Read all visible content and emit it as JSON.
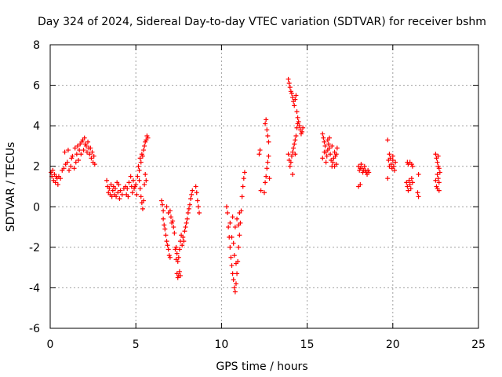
{
  "chart_data": {
    "type": "scatter",
    "title": "Day 324 of 2024, Sidereal Day-to-day VTEC variation (SDTVAR) for receiver bshm",
    "xlabel": "GPS time / hours",
    "ylabel": "SDTVAR / TECUs",
    "xlim": [
      0,
      25
    ],
    "ylim": [
      -6,
      8
    ],
    "xticks": [
      0,
      5,
      10,
      15,
      20,
      25
    ],
    "yticks": [
      -6,
      -4,
      -2,
      0,
      2,
      4,
      6,
      8
    ],
    "grid": true,
    "marker": "+",
    "color": "#ff0000",
    "series": [
      {
        "name": "SDTVAR",
        "points": [
          [
            0.05,
            1.7
          ],
          [
            0.1,
            1.5
          ],
          [
            0.15,
            1.8
          ],
          [
            0.2,
            1.3
          ],
          [
            0.25,
            1.6
          ],
          [
            0.3,
            1.2
          ],
          [
            0.35,
            1.5
          ],
          [
            0.4,
            1.4
          ],
          [
            0.45,
            1.1
          ],
          [
            0.5,
            1.5
          ],
          [
            0.6,
            1.4
          ],
          [
            0.7,
            1.8
          ],
          [
            0.8,
            1.9
          ],
          [
            0.85,
            2.7
          ],
          [
            0.9,
            2.1
          ],
          [
            1.0,
            2.2
          ],
          [
            1.05,
            2.8
          ],
          [
            1.1,
            1.8
          ],
          [
            1.2,
            2.0
          ],
          [
            1.25,
            2.4
          ],
          [
            1.3,
            2.5
          ],
          [
            1.4,
            1.9
          ],
          [
            1.45,
            2.9
          ],
          [
            1.5,
            2.2
          ],
          [
            1.55,
            2.6
          ],
          [
            1.6,
            3.0
          ],
          [
            1.65,
            2.3
          ],
          [
            1.7,
            2.8
          ],
          [
            1.75,
            3.1
          ],
          [
            1.8,
            2.6
          ],
          [
            1.85,
            3.2
          ],
          [
            1.9,
            3.3
          ],
          [
            1.95,
            2.8
          ],
          [
            2.0,
            3.4
          ],
          [
            2.05,
            3.1
          ],
          [
            2.1,
            3.0
          ],
          [
            2.15,
            2.7
          ],
          [
            2.2,
            3.2
          ],
          [
            2.25,
            2.9
          ],
          [
            2.3,
            2.6
          ],
          [
            2.35,
            2.9
          ],
          [
            2.4,
            2.4
          ],
          [
            2.45,
            2.7
          ],
          [
            2.5,
            2.2
          ],
          [
            2.55,
            2.5
          ],
          [
            2.6,
            2.1
          ],
          [
            3.3,
            1.3
          ],
          [
            3.35,
            1.0
          ],
          [
            3.4,
            0.7
          ],
          [
            3.45,
            0.9
          ],
          [
            3.5,
            0.6
          ],
          [
            3.55,
            1.1
          ],
          [
            3.6,
            0.5
          ],
          [
            3.65,
            0.8
          ],
          [
            3.7,
            1.0
          ],
          [
            3.75,
            0.6
          ],
          [
            3.8,
            0.9
          ],
          [
            3.85,
            0.5
          ],
          [
            3.9,
            1.2
          ],
          [
            3.95,
            0.7
          ],
          [
            4.0,
            1.1
          ],
          [
            4.05,
            0.4
          ],
          [
            4.1,
            0.8
          ],
          [
            4.2,
            0.6
          ],
          [
            4.3,
            0.9
          ],
          [
            4.4,
            1.0
          ],
          [
            4.45,
            0.6
          ],
          [
            4.5,
            0.9
          ],
          [
            4.55,
            0.5
          ],
          [
            4.6,
            1.2
          ],
          [
            4.7,
            1.5
          ],
          [
            4.75,
            1.0
          ],
          [
            4.8,
            0.7
          ],
          [
            4.85,
            1.3
          ],
          [
            4.9,
            0.9
          ],
          [
            4.95,
            1.0
          ],
          [
            5.0,
            1.1
          ],
          [
            5.05,
            0.6
          ],
          [
            5.1,
            1.5
          ],
          [
            5.15,
            2.0
          ],
          [
            5.2,
            1.8
          ],
          [
            5.25,
            2.4
          ],
          [
            5.3,
            2.2
          ],
          [
            5.35,
            2.6
          ],
          [
            5.4,
            2.5
          ],
          [
            5.45,
            2.8
          ],
          [
            5.5,
            3.0
          ],
          [
            5.55,
            3.2
          ],
          [
            5.6,
            3.3
          ],
          [
            5.65,
            3.5
          ],
          [
            5.7,
            3.4
          ],
          [
            5.2,
            1.3
          ],
          [
            5.25,
            0.9
          ],
          [
            5.3,
            0.5
          ],
          [
            5.35,
            0.2
          ],
          [
            5.4,
            -0.1
          ],
          [
            5.45,
            0.3
          ],
          [
            5.5,
            1.1
          ],
          [
            5.55,
            1.6
          ],
          [
            5.6,
            1.3
          ],
          [
            6.5,
            0.3
          ],
          [
            6.55,
            0.1
          ],
          [
            6.6,
            -0.2
          ],
          [
            6.6,
            -0.6
          ],
          [
            6.65,
            -0.9
          ],
          [
            6.7,
            -1.1
          ],
          [
            6.75,
            -1.4
          ],
          [
            6.8,
            -1.7
          ],
          [
            6.85,
            -1.9
          ],
          [
            6.9,
            -2.1
          ],
          [
            6.95,
            -2.4
          ],
          [
            7.0,
            -2.5
          ],
          [
            6.8,
            0.0
          ],
          [
            6.9,
            -0.3
          ],
          [
            7.0,
            -0.2
          ],
          [
            7.05,
            -0.5
          ],
          [
            7.1,
            -0.8
          ],
          [
            7.15,
            -0.7
          ],
          [
            7.2,
            -1.0
          ],
          [
            7.25,
            -1.3
          ],
          [
            7.3,
            -2.1
          ],
          [
            7.35,
            -2.6
          ],
          [
            7.4,
            -3.3
          ],
          [
            7.45,
            -3.5
          ],
          [
            7.5,
            -3.4
          ],
          [
            7.55,
            -3.2
          ],
          [
            7.6,
            -3.4
          ],
          [
            7.35,
            -2.0
          ],
          [
            7.4,
            -2.3
          ],
          [
            7.45,
            -2.7
          ],
          [
            7.5,
            -2.5
          ],
          [
            7.55,
            -2.1
          ],
          [
            7.6,
            -1.7
          ],
          [
            7.65,
            -1.4
          ],
          [
            7.7,
            -1.9
          ],
          [
            7.75,
            -1.5
          ],
          [
            7.8,
            -1.7
          ],
          [
            7.85,
            -1.2
          ],
          [
            7.9,
            -1.0
          ],
          [
            7.95,
            -0.8
          ],
          [
            8.0,
            -0.6
          ],
          [
            8.05,
            -0.3
          ],
          [
            8.1,
            -0.1
          ],
          [
            8.15,
            0.1
          ],
          [
            8.2,
            0.4
          ],
          [
            8.25,
            0.6
          ],
          [
            8.3,
            0.8
          ],
          [
            8.5,
            1.0
          ],
          [
            8.55,
            0.7
          ],
          [
            8.6,
            0.3
          ],
          [
            8.65,
            0.0
          ],
          [
            8.7,
            -0.3
          ],
          [
            10.3,
            0.0
          ],
          [
            10.35,
            -0.3
          ],
          [
            10.4,
            -1.0
          ],
          [
            10.45,
            -1.5
          ],
          [
            10.5,
            -2.0
          ],
          [
            10.55,
            -2.5
          ],
          [
            10.6,
            -2.9
          ],
          [
            10.65,
            -3.3
          ],
          [
            10.7,
            -3.6
          ],
          [
            10.75,
            -4.0
          ],
          [
            10.8,
            -4.2
          ],
          [
            10.85,
            -3.8
          ],
          [
            10.9,
            -3.3
          ],
          [
            10.95,
            -2.7
          ],
          [
            11.0,
            -2.0
          ],
          [
            11.05,
            -1.4
          ],
          [
            11.1,
            -0.8
          ],
          [
            11.15,
            -0.2
          ],
          [
            11.2,
            0.5
          ],
          [
            11.25,
            1.0
          ],
          [
            11.3,
            1.4
          ],
          [
            11.35,
            1.7
          ],
          [
            10.6,
            -1.5
          ],
          [
            10.7,
            -1.8
          ],
          [
            10.8,
            -1.0
          ],
          [
            10.9,
            -0.6
          ],
          [
            11.0,
            -0.9
          ],
          [
            10.5,
            -0.8
          ],
          [
            10.65,
            -0.5
          ],
          [
            10.75,
            -2.4
          ],
          [
            10.85,
            -2.8
          ],
          [
            11.05,
            -0.3
          ],
          [
            12.2,
            2.6
          ],
          [
            12.25,
            2.8
          ],
          [
            12.3,
            0.8
          ],
          [
            12.5,
            0.7
          ],
          [
            12.55,
            1.2
          ],
          [
            12.6,
            1.5
          ],
          [
            12.65,
            1.9
          ],
          [
            12.7,
            2.2
          ],
          [
            12.75,
            2.5
          ],
          [
            12.6,
            4.3
          ],
          [
            12.65,
            3.8
          ],
          [
            12.7,
            3.5
          ],
          [
            12.75,
            3.2
          ],
          [
            12.8,
            1.4
          ],
          [
            12.55,
            4.1
          ],
          [
            13.9,
            6.3
          ],
          [
            13.95,
            6.1
          ],
          [
            14.0,
            5.9
          ],
          [
            14.05,
            5.7
          ],
          [
            14.1,
            5.6
          ],
          [
            14.15,
            5.4
          ],
          [
            14.2,
            5.2
          ],
          [
            14.25,
            5.0
          ],
          [
            14.3,
            5.3
          ],
          [
            14.35,
            5.5
          ],
          [
            14.4,
            4.7
          ],
          [
            14.45,
            4.4
          ],
          [
            14.5,
            4.2
          ],
          [
            14.55,
            4.0
          ],
          [
            14.6,
            3.8
          ],
          [
            14.65,
            3.6
          ],
          [
            14.7,
            3.7
          ],
          [
            14.75,
            3.9
          ],
          [
            13.9,
            2.6
          ],
          [
            13.95,
            2.3
          ],
          [
            14.0,
            2.0
          ],
          [
            14.05,
            2.2
          ],
          [
            14.1,
            2.5
          ],
          [
            14.15,
            2.7
          ],
          [
            14.2,
            2.9
          ],
          [
            14.25,
            3.1
          ],
          [
            14.3,
            3.3
          ],
          [
            14.35,
            3.5
          ],
          [
            14.4,
            3.9
          ],
          [
            14.45,
            4.1
          ],
          [
            14.15,
            1.6
          ],
          [
            14.3,
            2.6
          ],
          [
            15.9,
            3.6
          ],
          [
            15.95,
            3.4
          ],
          [
            16.0,
            3.2
          ],
          [
            16.05,
            3.0
          ],
          [
            16.1,
            2.7
          ],
          [
            16.15,
            2.5
          ],
          [
            16.2,
            2.8
          ],
          [
            16.25,
            3.1
          ],
          [
            16.3,
            2.9
          ],
          [
            16.35,
            2.6
          ],
          [
            16.4,
            2.3
          ],
          [
            16.45,
            2.0
          ],
          [
            16.5,
            2.2
          ],
          [
            16.55,
            2.4
          ],
          [
            16.6,
            2.7
          ],
          [
            16.65,
            2.5
          ],
          [
            16.7,
            2.1
          ],
          [
            16.75,
            2.9
          ],
          [
            15.9,
            2.4
          ],
          [
            16.0,
            2.7
          ],
          [
            16.1,
            2.2
          ],
          [
            16.2,
            3.3
          ],
          [
            16.3,
            3.4
          ],
          [
            16.45,
            3.0
          ],
          [
            16.6,
            2.0
          ],
          [
            16.7,
            2.6
          ],
          [
            18.0,
            2.0
          ],
          [
            18.05,
            1.8
          ],
          [
            18.1,
            1.9
          ],
          [
            18.15,
            2.1
          ],
          [
            18.2,
            1.9
          ],
          [
            18.25,
            1.7
          ],
          [
            18.3,
            1.8
          ],
          [
            18.35,
            2.0
          ],
          [
            18.4,
            1.8
          ],
          [
            18.45,
            1.7
          ],
          [
            18.5,
            1.6
          ],
          [
            18.55,
            1.8
          ],
          [
            18.6,
            1.7
          ],
          [
            18.1,
            1.1
          ],
          [
            18.0,
            1.0
          ],
          [
            19.7,
            3.3
          ],
          [
            19.75,
            2.3
          ],
          [
            19.8,
            2.0
          ],
          [
            19.85,
            2.4
          ],
          [
            19.9,
            2.1
          ],
          [
            19.95,
            1.9
          ],
          [
            20.0,
            2.3
          ],
          [
            20.05,
            2.0
          ],
          [
            20.1,
            1.8
          ],
          [
            20.15,
            2.2
          ],
          [
            19.7,
            1.4
          ],
          [
            19.8,
            2.6
          ],
          [
            20.0,
            2.5
          ],
          [
            20.8,
            1.2
          ],
          [
            20.85,
            1.0
          ],
          [
            20.9,
            0.8
          ],
          [
            20.95,
            1.3
          ],
          [
            21.0,
            1.1
          ],
          [
            21.05,
            0.9
          ],
          [
            21.1,
            1.4
          ],
          [
            21.15,
            1.2
          ],
          [
            20.85,
            2.2
          ],
          [
            20.9,
            2.1
          ],
          [
            21.0,
            2.2
          ],
          [
            21.1,
            2.1
          ],
          [
            21.15,
            2.0
          ],
          [
            21.5,
            1.6
          ],
          [
            21.45,
            0.7
          ],
          [
            21.5,
            0.5
          ],
          [
            22.5,
            2.6
          ],
          [
            22.55,
            2.4
          ],
          [
            22.6,
            2.2
          ],
          [
            22.65,
            2.0
          ],
          [
            22.6,
            1.6
          ],
          [
            22.65,
            1.4
          ],
          [
            22.7,
            1.2
          ],
          [
            22.55,
            1.0
          ],
          [
            22.6,
            0.9
          ],
          [
            22.7,
            0.8
          ],
          [
            22.75,
            1.7
          ],
          [
            22.65,
            2.5
          ],
          [
            22.5,
            1.3
          ],
          [
            22.7,
            1.9
          ]
        ]
      }
    ]
  }
}
